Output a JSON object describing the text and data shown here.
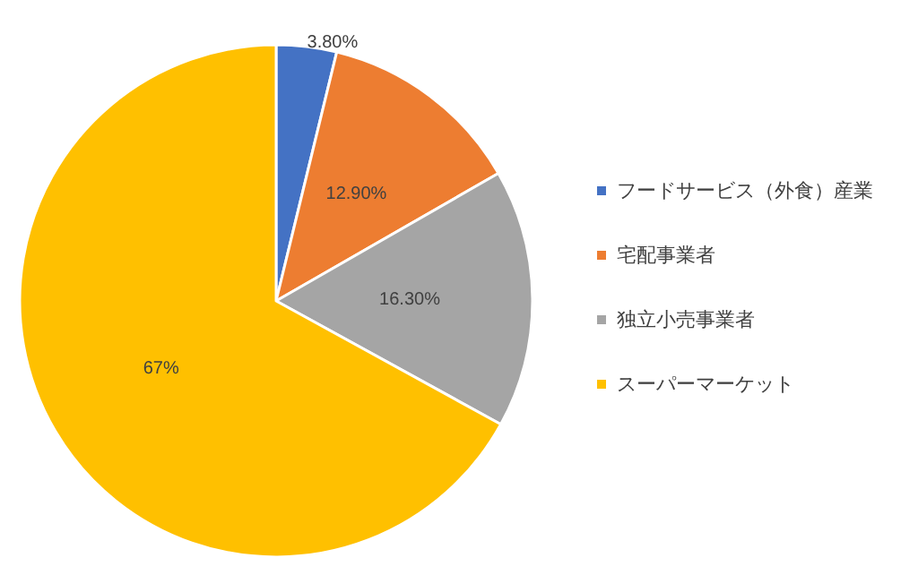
{
  "chart_data": {
    "type": "pie",
    "categories": [
      "フードサービス（外食）産業",
      "宅配事業者",
      "独立小売事業者",
      "スーパーマーケット"
    ],
    "values": [
      3.8,
      12.9,
      16.3,
      67
    ],
    "value_labels": [
      "3.80%",
      "12.90%",
      "16.30%",
      "67%"
    ],
    "colors": [
      "#4472c4",
      "#ed7d31",
      "#a5a5a5",
      "#ffc000"
    ],
    "legend": "right"
  }
}
